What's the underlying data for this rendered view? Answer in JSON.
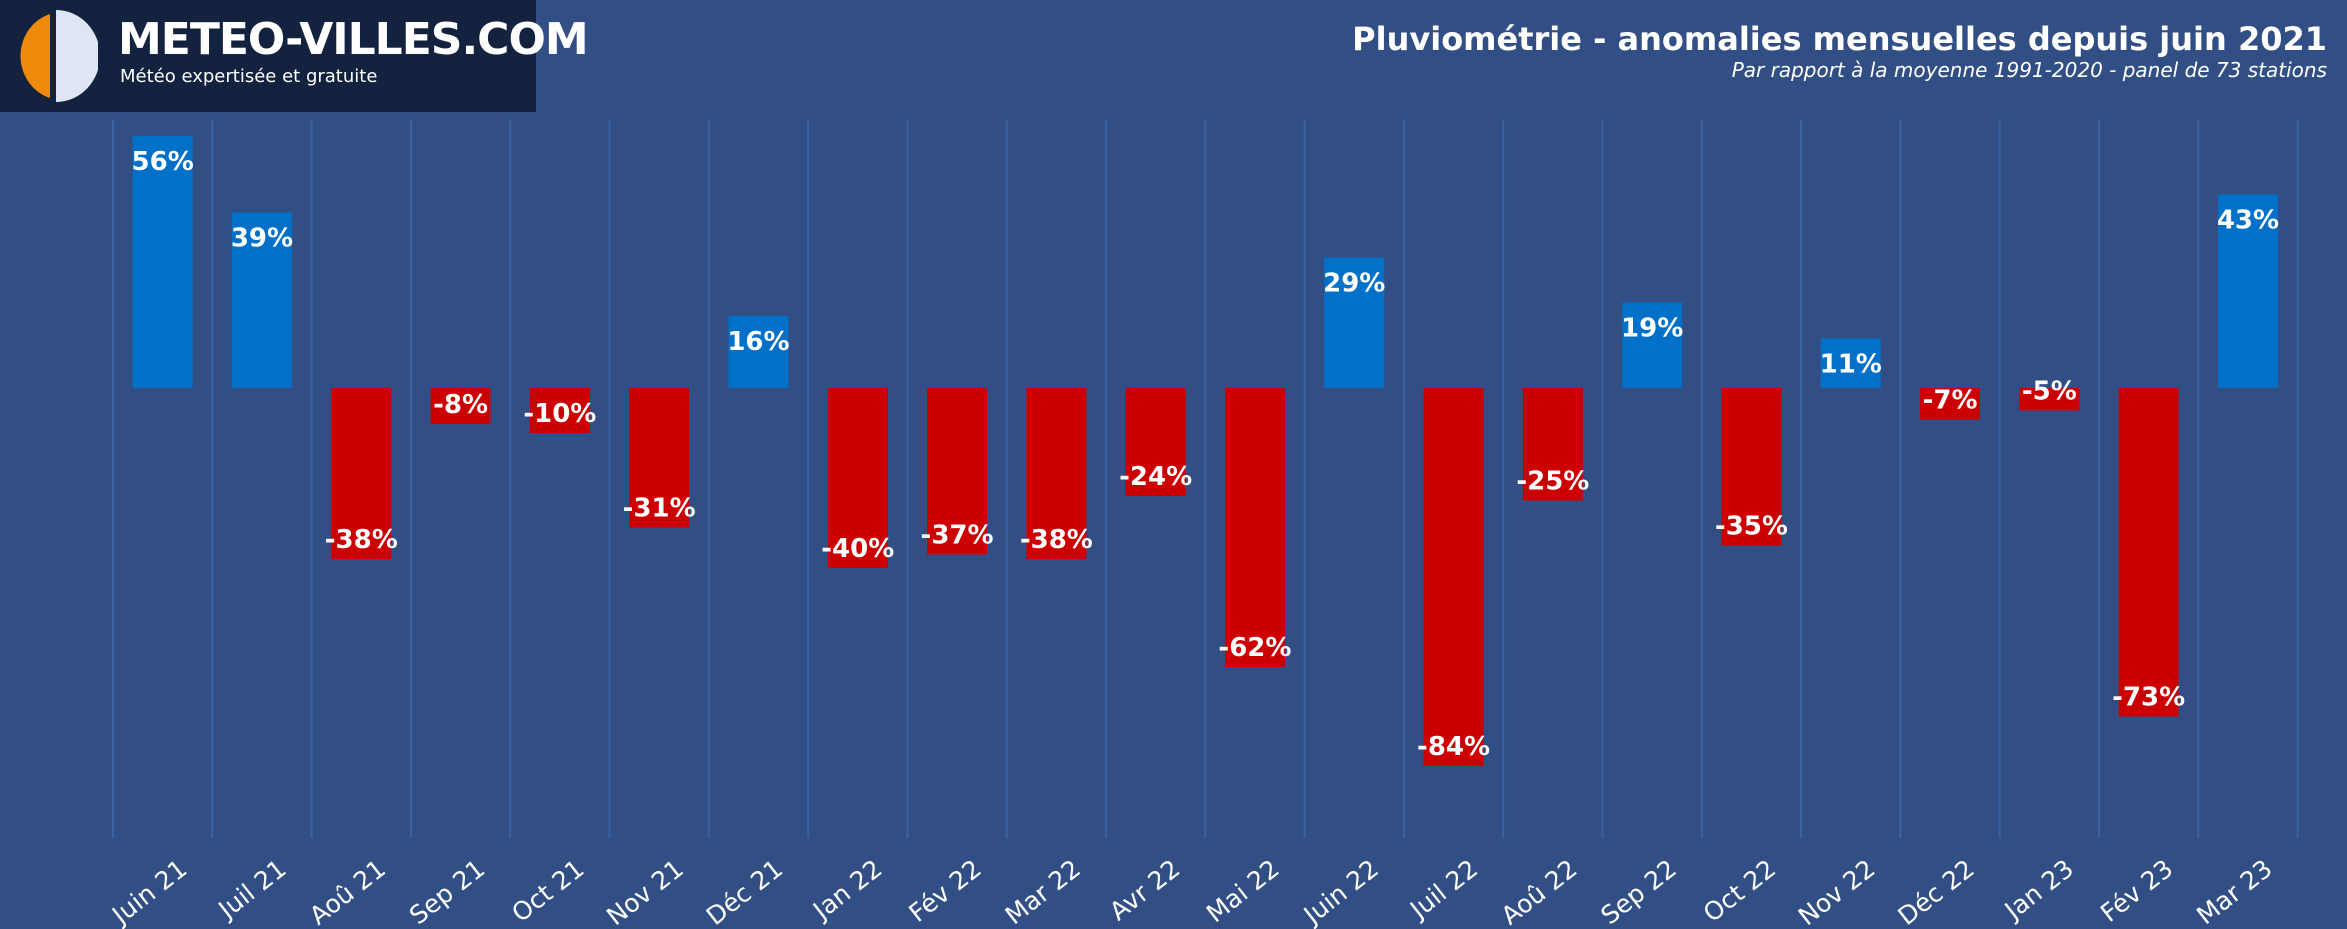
{
  "brand": {
    "name": "METEO-VILLES.COM",
    "tagline": "Météo expertisée et gratuite"
  },
  "colors": {
    "background": "#324f85",
    "positive": "#0070c9",
    "negative": "#cc0000",
    "gridline": "#3b62a0",
    "logo_bg": "#13223f",
    "logo_orange": "#f08a0c",
    "logo_white": "#dde6f2"
  },
  "chart_data": {
    "type": "bar",
    "title": "Pluviométrie - anomalies mensuelles depuis juin 2021",
    "subtitle": "Par rapport à la moyenne 1991-2020 - panel de 73 stations",
    "categories": [
      "Juin 21",
      "Juil 21",
      "Aoû 21",
      "Sep 21",
      "Oct 21",
      "Nov 21",
      "Déc 21",
      "Jan 22",
      "Fév 22",
      "Mar 22",
      "Avr 22",
      "Mai 22",
      "Juin 22",
      "Juil 22",
      "Aoû 22",
      "Sep 22",
      "Oct 22",
      "Nov 22",
      "Déc 22",
      "Jan 23",
      "Fév 23",
      "Mar 23"
    ],
    "values": [
      56,
      39,
      -38,
      -8,
      -10,
      -31,
      16,
      -40,
      -37,
      -38,
      -24,
      -62,
      29,
      -84,
      -25,
      19,
      -35,
      11,
      -7,
      -5,
      -73,
      43
    ],
    "value_labels": [
      "56%",
      "39%",
      "-38%",
      "-8%",
      "-10%",
      "-31%",
      "16%",
      "-40%",
      "-37%",
      "-38%",
      "-24%",
      "-62%",
      "29%",
      "-84%",
      "-25%",
      "19%",
      "-35%",
      "11%",
      "-7%",
      "-5%",
      "-73%",
      "43%"
    ],
    "ylim": [
      -100,
      60
    ],
    "grid": true,
    "legend": "none",
    "xlabel": "",
    "ylabel": ""
  }
}
